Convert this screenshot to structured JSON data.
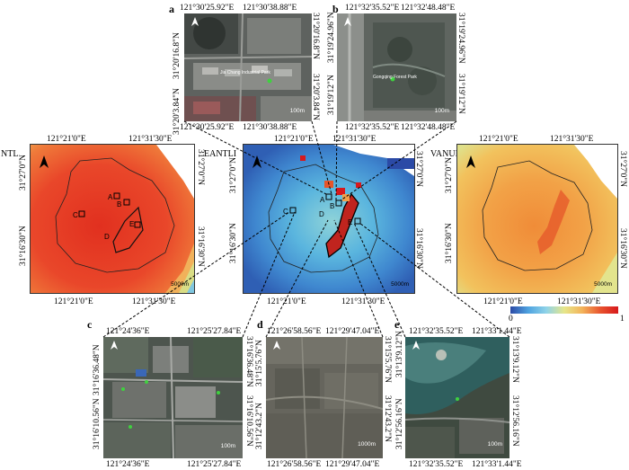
{
  "maps": {
    "ntl": {
      "title": "NTL",
      "top_left": "121°21'0\"E",
      "top_right": "121°31'30\"E",
      "bottom_left": "121°21'0\"E",
      "bottom_right": "121°31'30\"E",
      "left_top": "31°27'0\"N",
      "left_bottom": "31°16'30\"N",
      "right_top": "31°27'0\"N",
      "right_bottom": "31°16'30\"N",
      "scale": "5000m"
    },
    "eantli": {
      "title": "EANTLI",
      "top_left": "121°21'0\"E",
      "top_right": "121°31'30\"E",
      "bottom_left": "121°21'0\"E",
      "bottom_right": "121°31'30\"E",
      "left_top": "31°27'0\"N",
      "left_bottom": "31°16'30\"N",
      "right_top": "31°27'0\"N",
      "right_bottom": "31°16'30\"N",
      "scale": "5000m"
    },
    "vanui": {
      "title": "VANUI",
      "top_left": "121°21'0\"E",
      "top_right": "121°31'30\"E",
      "bottom_left": "121°21'0\"E",
      "bottom_right": "121°31'30\"E",
      "left_top": "31°27'0\"N",
      "left_bottom": "31°16'30\"N",
      "right_top": "31°27'0\"N",
      "right_bottom": "31°16'30\"N",
      "scale": "5000m"
    }
  },
  "regions": [
    "A",
    "B",
    "C",
    "D",
    "E"
  ],
  "insets": {
    "a": {
      "tag": "a",
      "top_left": "121°30'25.92\"E",
      "top_right": "121°30'38.88\"E",
      "bottom_left": "121°30'25.92\"E",
      "bottom_right": "121°30'38.88\"E",
      "left_top": "31°20'16.8\"N",
      "left_bottom": "31°20'3.84\"N",
      "right_top": "31°20'16.8\"N",
      "right_bottom": "31°20'3.84\"N",
      "scale": "100m",
      "place": "Jia Chang Industrial Park"
    },
    "b": {
      "tag": "b",
      "top_left": "121°32'35.52\"E",
      "top_right": "121°32'48.48\"E",
      "bottom_left": "121°32'35.52\"E",
      "bottom_right": "121°32'48.48\"E",
      "left_top": "31°19'24.96\"N",
      "left_bottom": "31°19'12\"N",
      "right_top": "31°19'24.96\"N",
      "right_bottom": "31°19'12\"N",
      "scale": "100m",
      "place": "Gongqing Forest Park"
    },
    "c": {
      "tag": "c",
      "top_left": "121°24'36\"E",
      "top_right": "121°25'27.84\"E",
      "bottom_left": "121°24'36\"E",
      "bottom_right": "121°25'27.84\"E",
      "left_top": "31°16'36.48\"N",
      "left_bottom": "31°16'10.56\"N",
      "right_top": "31°16'36.48\"N",
      "right_bottom": "31°16'10.56\"N",
      "scale": "100m"
    },
    "d": {
      "tag": "d",
      "top_left": "121°26'58.56\"E",
      "top_right": "121°29'47.04\"E",
      "bottom_left": "121°26'58.56\"E",
      "bottom_right": "121°29'47.04\"E",
      "left_top": "31°15'5.76\"N",
      "left_bottom": "31°12'43.2\"N",
      "right_top": "31°15'5.76\"N",
      "right_bottom": "31°12'43.2\"N",
      "scale": "1000m"
    },
    "e": {
      "tag": "e",
      "top_left": "121°32'35.52\"E",
      "top_right": "121°33'1.44\"E",
      "bottom_left": "121°32'35.52\"E",
      "bottom_right": "121°33'1.44\"E",
      "left_top": "31°13'9.12\"N",
      "left_bottom": "31°12'56.16\"N",
      "right_top": "31°13'9.12\"N",
      "right_bottom": "31°12'56.16\"N",
      "scale": "100m"
    }
  },
  "legend": {
    "min": "0",
    "max": "1",
    "colors": [
      "#2b4aa6",
      "#4fa3e0",
      "#8fd3e8",
      "#e6e68a",
      "#f3b35a",
      "#e8542e",
      "#d7191c"
    ]
  }
}
